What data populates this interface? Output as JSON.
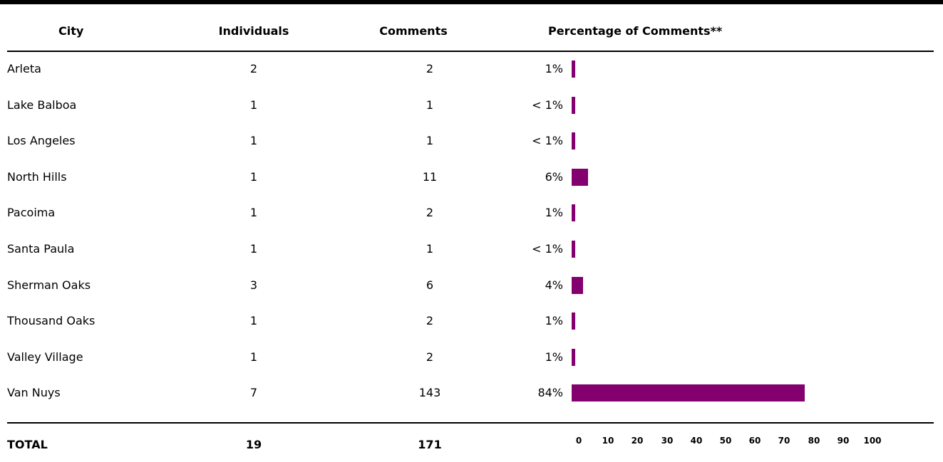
{
  "table": {
    "headers": {
      "city": "City",
      "individuals": "Individuals",
      "comments": "Comments",
      "percentage": "Percentage of Comments**"
    },
    "rows": [
      {
        "city": "Arleta",
        "individuals": "2",
        "comments": "2",
        "pct_label": "1%"
      },
      {
        "city": "Lake Balboa",
        "individuals": "1",
        "comments": "1",
        "pct_label": "< 1%"
      },
      {
        "city": "Los Angeles",
        "individuals": "1",
        "comments": "1",
        "pct_label": "< 1%"
      },
      {
        "city": "North Hills",
        "individuals": "1",
        "comments": "11",
        "pct_label": "6%"
      },
      {
        "city": "Pacoima",
        "individuals": "1",
        "comments": "2",
        "pct_label": "1%"
      },
      {
        "city": "Santa Paula",
        "individuals": "1",
        "comments": "1",
        "pct_label": "< 1%"
      },
      {
        "city": "Sherman Oaks",
        "individuals": "3",
        "comments": "6",
        "pct_label": "4%"
      },
      {
        "city": "Thousand Oaks",
        "individuals": "1",
        "comments": "2",
        "pct_label": "1%"
      },
      {
        "city": "Valley Village",
        "individuals": "1",
        "comments": "2",
        "pct_label": "1%"
      },
      {
        "city": "Van Nuys",
        "individuals": "7",
        "comments": "143",
        "pct_label": "84%"
      }
    ],
    "total": {
      "label": "TOTAL",
      "individuals": "19",
      "comments": "171"
    }
  },
  "chart_data": {
    "type": "bar",
    "orientation": "horizontal",
    "categories": [
      "Arleta",
      "Lake Balboa",
      "Los Angeles",
      "North Hills",
      "Pacoima",
      "Santa Paula",
      "Sherman Oaks",
      "Thousand Oaks",
      "Valley Village",
      "Van Nuys"
    ],
    "values": [
      1,
      0.6,
      0.6,
      6,
      1,
      0.6,
      4,
      1,
      1,
      84
    ],
    "xlim": [
      0,
      100
    ],
    "xticks": [
      "0",
      "10",
      "20",
      "30",
      "40",
      "50",
      "60",
      "70",
      "80",
      "90",
      "100"
    ],
    "bar_color": "#84006f",
    "grid": false
  }
}
